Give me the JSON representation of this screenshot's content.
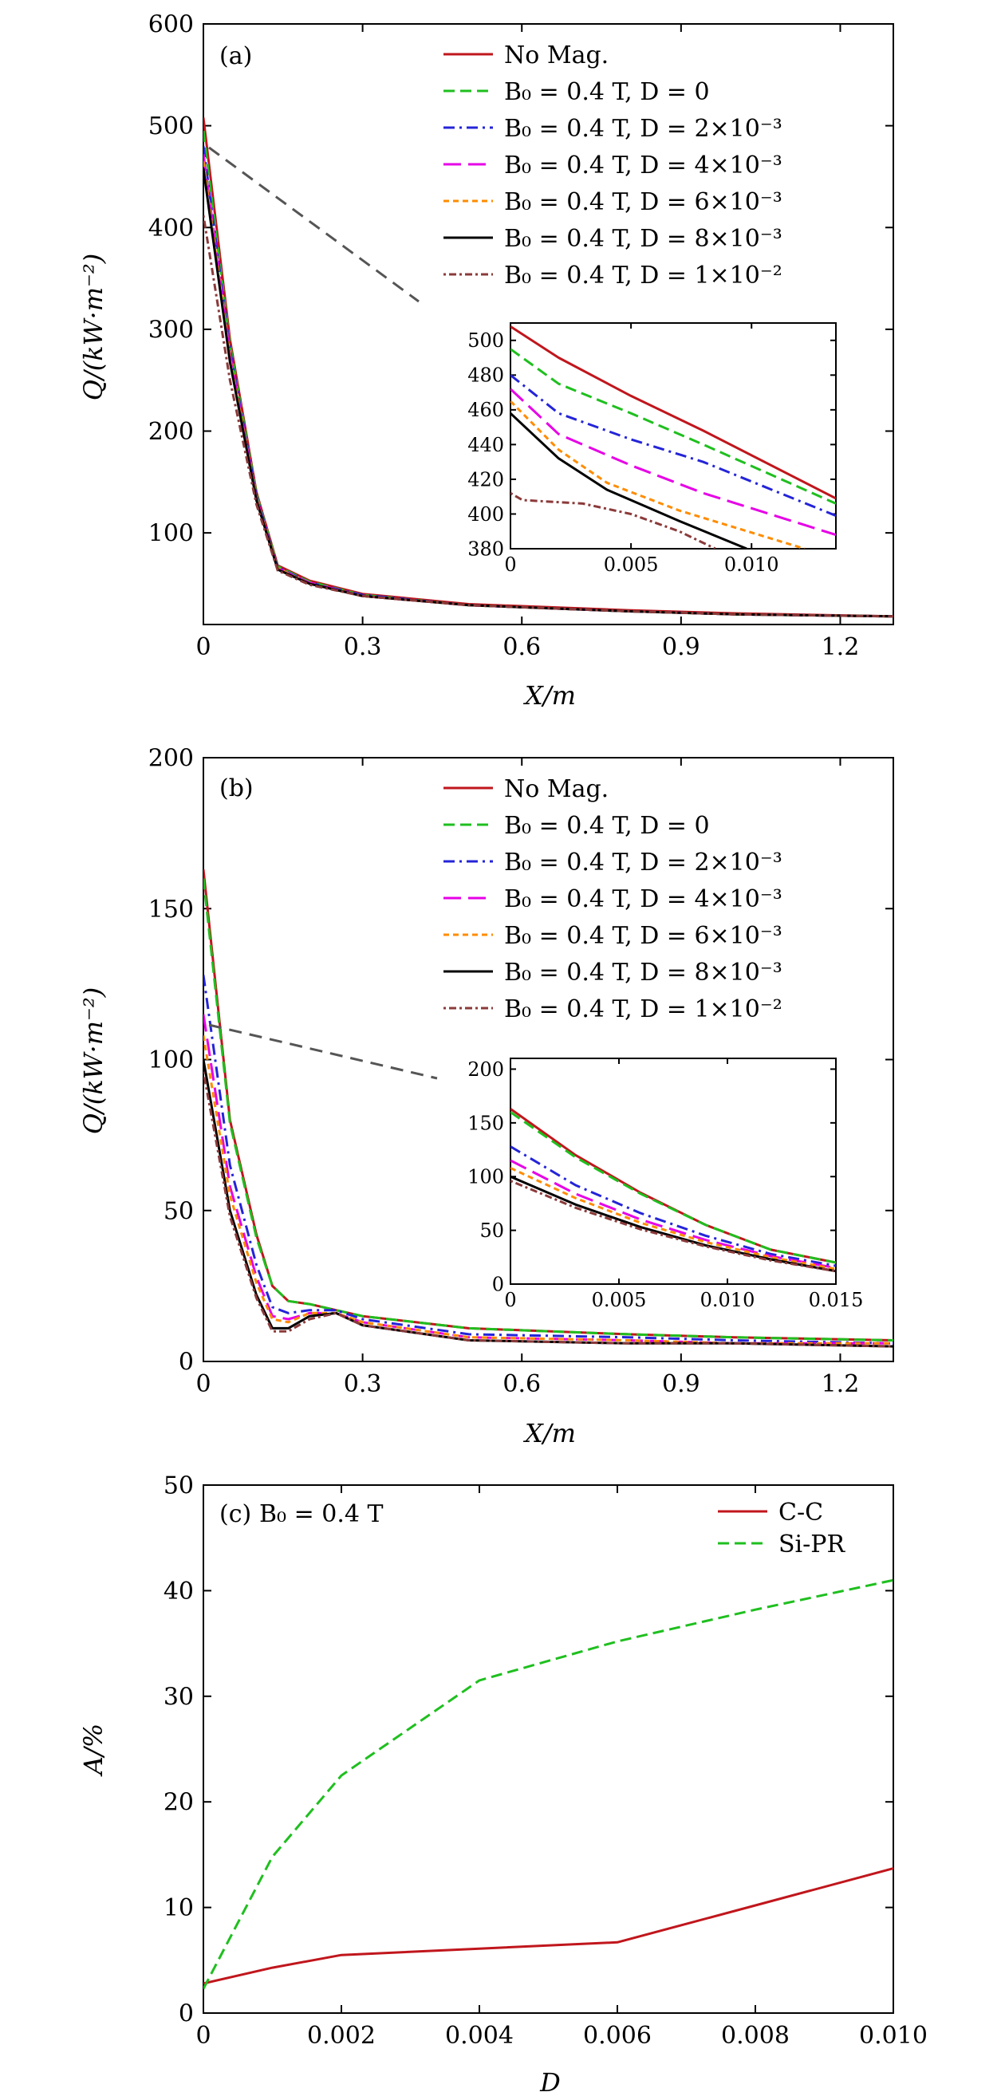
{
  "colors": {
    "nomag": "#c0161c",
    "d0": "#1fbf1f",
    "d2": "#2424d8",
    "d4": "#e600e6",
    "d6": "#ff8c00",
    "d8": "#000000",
    "d10": "#8b3a3a",
    "cc": "#c0161c",
    "sipr": "#1fbf1f",
    "connector": "#555555"
  },
  "chart_data": [
    {
      "panel": "a",
      "type": "line",
      "panel_label": "(a)",
      "xlabel": "X/m",
      "ylabel": "Q/(kW·m⁻²)",
      "xlim": [
        0,
        1.3
      ],
      "ylim": [
        10,
        600
      ],
      "xticks": [
        "0",
        "0.3",
        "0.6",
        "0.9",
        "1.2"
      ],
      "yticks": [
        "100",
        "200",
        "300",
        "400",
        "500",
        "600"
      ],
      "legend": [
        "No Mag.",
        "B₀ = 0.4 T, D = 0",
        "B₀ = 0.4 T, D = 2×10⁻³",
        "B₀ = 0.4 T, D = 4×10⁻³",
        "B₀ = 0.4 T, D = 6×10⁻³",
        "B₀ = 0.4 T, D = 8×10⁻³",
        "B₀ = 0.4 T, D = 1×10⁻²"
      ],
      "series": [
        {
          "name": "No Mag.",
          "color_key": "nomag",
          "dash": "solid",
          "x": [
            0,
            0.05,
            0.1,
            0.14,
            0.2,
            0.3,
            0.5,
            0.8,
            1.0,
            1.3
          ],
          "y": [
            508,
            290,
            140,
            68,
            53,
            40,
            30,
            24,
            21,
            18
          ]
        },
        {
          "name": "B₀ = 0.4 T, D = 0",
          "color_key": "d0",
          "dash": "dash",
          "x": [
            0,
            0.05,
            0.1,
            0.14,
            0.2,
            0.3,
            0.5,
            0.8,
            1.0,
            1.3
          ],
          "y": [
            495,
            285,
            138,
            67,
            52,
            39,
            29,
            23,
            20,
            18
          ]
        },
        {
          "name": "B₀ = 0.4 T, D = 2×10⁻³",
          "color_key": "d2",
          "dash": "dashdot",
          "x": [
            0,
            0.05,
            0.1,
            0.14,
            0.2,
            0.3,
            0.5,
            0.8,
            1.0,
            1.3
          ],
          "y": [
            480,
            280,
            136,
            66,
            51,
            39,
            29,
            23,
            20,
            18
          ]
        },
        {
          "name": "B₀ = 0.4 T, D = 4×10⁻³",
          "color_key": "d4",
          "dash": "longdash",
          "x": [
            0,
            0.05,
            0.1,
            0.14,
            0.2,
            0.3,
            0.5,
            0.8,
            1.0,
            1.3
          ],
          "y": [
            472,
            276,
            134,
            65,
            51,
            38,
            29,
            23,
            20,
            18
          ]
        },
        {
          "name": "B₀ = 0.4 T, D = 6×10⁻³",
          "color_key": "d6",
          "dash": "shortdash",
          "x": [
            0,
            0.05,
            0.1,
            0.14,
            0.2,
            0.3,
            0.5,
            0.8,
            1.0,
            1.3
          ],
          "y": [
            465,
            272,
            133,
            65,
            50,
            38,
            29,
            23,
            20,
            18
          ]
        },
        {
          "name": "B₀ = 0.4 T, D = 8×10⁻³",
          "color_key": "d8",
          "dash": "solid",
          "x": [
            0,
            0.05,
            0.1,
            0.14,
            0.2,
            0.3,
            0.5,
            0.8,
            1.0,
            1.3
          ],
          "y": [
            458,
            268,
            132,
            64,
            50,
            38,
            29,
            23,
            20,
            18
          ]
        },
        {
          "name": "B₀ = 0.4 T, D = 1×10⁻²",
          "color_key": "d10",
          "dash": "dotdash",
          "x": [
            0,
            0.05,
            0.1,
            0.14,
            0.2,
            0.3,
            0.5,
            0.8,
            1.0,
            1.3
          ],
          "y": [
            412,
            250,
            128,
            63,
            49,
            38,
            29,
            23,
            20,
            18
          ]
        }
      ],
      "inset": {
        "xlim": [
          0,
          0.0135
        ],
        "ylim": [
          380,
          510
        ],
        "xticks": [
          "0",
          "0.005",
          "0.010"
        ],
        "yticks": [
          "380",
          "400",
          "420",
          "440",
          "460",
          "480",
          "500"
        ],
        "series": [
          {
            "color_key": "nomag",
            "dash": "solid",
            "x": [
              0,
              0.002,
              0.005,
              0.008,
              0.0135
            ],
            "y": [
              508,
              490,
              468,
              448,
              409
            ]
          },
          {
            "color_key": "d0",
            "dash": "dash",
            "x": [
              0,
              0.002,
              0.005,
              0.008,
              0.0135
            ],
            "y": [
              495,
              475,
              458,
              440,
              406
            ]
          },
          {
            "color_key": "d2",
            "dash": "dashdot",
            "x": [
              0,
              0.002,
              0.005,
              0.008,
              0.0135
            ],
            "y": [
              480,
              458,
              443,
              430,
              399
            ]
          },
          {
            "color_key": "d4",
            "dash": "longdash",
            "x": [
              0,
              0.002,
              0.005,
              0.008,
              0.0135
            ],
            "y": [
              472,
              446,
              428,
              412,
              388
            ]
          },
          {
            "color_key": "d6",
            "dash": "shortdash",
            "x": [
              0,
              0.002,
              0.004,
              0.007,
              0.0122
            ],
            "y": [
              465,
              437,
              418,
              402,
              380
            ]
          },
          {
            "color_key": "d8",
            "dash": "solid",
            "x": [
              0,
              0.002,
              0.004,
              0.007,
              0.0098
            ],
            "y": [
              458,
              432,
              414,
              396,
              380
            ]
          },
          {
            "color_key": "d10",
            "dash": "dotdash",
            "x": [
              0,
              0.0005,
              0.003,
              0.005,
              0.007,
              0.0085
            ],
            "y": [
              412,
              408,
              406,
              400,
              390,
              380
            ]
          }
        ]
      }
    },
    {
      "panel": "b",
      "type": "line",
      "panel_label": "(b)",
      "xlabel": "X/m",
      "ylabel": "Q/(kW·m⁻²)",
      "xlim": [
        0,
        1.3
      ],
      "ylim": [
        0,
        200
      ],
      "xticks": [
        "0",
        "0.3",
        "0.6",
        "0.9",
        "1.2"
      ],
      "yticks": [
        "0",
        "50",
        "100",
        "150",
        "200"
      ],
      "legend": [
        "No Mag.",
        "B₀ = 0.4 T, D = 0",
        "B₀ = 0.4 T, D = 2×10⁻³",
        "B₀ = 0.4 T, D = 4×10⁻³",
        "B₀ = 0.4 T, D = 6×10⁻³",
        "B₀ = 0.4 T, D = 8×10⁻³",
        "B₀ = 0.4 T, D = 1×10⁻²"
      ],
      "series": [
        {
          "name": "No Mag.",
          "color_key": "nomag",
          "dash": "solid",
          "x": [
            0,
            0.05,
            0.1,
            0.13,
            0.16,
            0.2,
            0.25,
            0.3,
            0.5,
            0.8,
            1.0,
            1.3
          ],
          "y": [
            163,
            80,
            42,
            25,
            20,
            19,
            17,
            15,
            11,
            9,
            8,
            7
          ]
        },
        {
          "name": "B₀ = 0.4 T, D = 0",
          "color_key": "d0",
          "dash": "dash",
          "x": [
            0,
            0.05,
            0.1,
            0.13,
            0.16,
            0.2,
            0.25,
            0.3,
            0.5,
            0.8,
            1.0,
            1.3
          ],
          "y": [
            160,
            79,
            41,
            25,
            20,
            19,
            17,
            15,
            11,
            9,
            8,
            7
          ]
        },
        {
          "name": "B₀ = 0.4 T, D = 2×10⁻³",
          "color_key": "d2",
          "dash": "dashdot",
          "x": [
            0,
            0.05,
            0.1,
            0.13,
            0.16,
            0.2,
            0.25,
            0.3,
            0.5,
            0.8,
            1.0,
            1.3
          ],
          "y": [
            128,
            65,
            32,
            18,
            16,
            17,
            17,
            14,
            9,
            8,
            7,
            6
          ]
        },
        {
          "name": "B₀ = 0.4 T, D = 4×10⁻³",
          "color_key": "d4",
          "dash": "longdash",
          "x": [
            0,
            0.05,
            0.1,
            0.13,
            0.16,
            0.2,
            0.25,
            0.3,
            0.5,
            0.8,
            1.0,
            1.3
          ],
          "y": [
            115,
            58,
            28,
            15,
            14,
            16,
            16,
            13,
            8,
            7,
            6,
            6
          ]
        },
        {
          "name": "B₀ = 0.4 T, D = 6×10⁻³",
          "color_key": "d6",
          "dash": "shortdash",
          "x": [
            0,
            0.05,
            0.1,
            0.13,
            0.16,
            0.2,
            0.25,
            0.3,
            0.5,
            0.8,
            1.0,
            1.3
          ],
          "y": [
            108,
            55,
            26,
            14,
            13,
            16,
            16,
            13,
            8,
            7,
            6,
            6
          ]
        },
        {
          "name": "B₀ = 0.4 T, D = 8×10⁻³",
          "color_key": "d8",
          "dash": "solid",
          "x": [
            0,
            0.05,
            0.1,
            0.13,
            0.16,
            0.2,
            0.25,
            0.3,
            0.5,
            0.8,
            1.0,
            1.3
          ],
          "y": [
            100,
            50,
            22,
            11,
            11,
            15,
            16,
            12,
            7,
            6,
            6,
            5
          ]
        },
        {
          "name": "B₀ = 0.4 T, D = 1×10⁻²",
          "color_key": "d10",
          "dash": "dotdash",
          "x": [
            0,
            0.05,
            0.1,
            0.13,
            0.16,
            0.2,
            0.25,
            0.3,
            0.5,
            0.8,
            1.0,
            1.3
          ],
          "y": [
            96,
            48,
            21,
            10,
            10,
            14,
            16,
            12,
            7,
            6,
            6,
            5
          ]
        }
      ],
      "inset": {
        "xlim": [
          0,
          0.015
        ],
        "ylim": [
          0,
          210
        ],
        "xticks": [
          "0",
          "0.005",
          "0.010",
          "0.015"
        ],
        "yticks": [
          "0",
          "50",
          "100",
          "150",
          "200"
        ],
        "series": [
          {
            "color_key": "nomag",
            "dash": "solid",
            "x": [
              0,
              0.003,
              0.006,
              0.009,
              0.012,
              0.015
            ],
            "y": [
              163,
              120,
              85,
              55,
              32,
              20
            ]
          },
          {
            "color_key": "d0",
            "dash": "dash",
            "x": [
              0,
              0.003,
              0.006,
              0.009,
              0.012,
              0.015
            ],
            "y": [
              160,
              118,
              84,
              55,
              32,
              20
            ]
          },
          {
            "color_key": "d2",
            "dash": "dashdot",
            "x": [
              0,
              0.003,
              0.006,
              0.009,
              0.012,
              0.015
            ],
            "y": [
              128,
              92,
              66,
              45,
              28,
              17
            ]
          },
          {
            "color_key": "d4",
            "dash": "longdash",
            "x": [
              0,
              0.003,
              0.006,
              0.009,
              0.012,
              0.015
            ],
            "y": [
              115,
              84,
              60,
              41,
              26,
              15
            ]
          },
          {
            "color_key": "d6",
            "dash": "shortdash",
            "x": [
              0,
              0.003,
              0.006,
              0.009,
              0.012,
              0.015
            ],
            "y": [
              108,
              80,
              57,
              39,
              25,
              14
            ]
          },
          {
            "color_key": "d8",
            "dash": "solid",
            "x": [
              0,
              0.003,
              0.006,
              0.009,
              0.012,
              0.015
            ],
            "y": [
              100,
              74,
              53,
              36,
              23,
              12
            ]
          },
          {
            "color_key": "d10",
            "dash": "dotdash",
            "x": [
              0,
              0.003,
              0.006,
              0.009,
              0.012,
              0.015
            ],
            "y": [
              96,
              71,
              51,
              35,
              22,
              12
            ]
          }
        ]
      }
    },
    {
      "panel": "c",
      "type": "line",
      "panel_label": "(c)",
      "annotation": "B₀ = 0.4 T",
      "xlabel": "D",
      "ylabel": "A/%",
      "xlim": [
        0,
        0.01
      ],
      "ylim": [
        0,
        50
      ],
      "xticks": [
        "0",
        "0.002",
        "0.004",
        "0.006",
        "0.008",
        "0.010"
      ],
      "yticks": [
        "0",
        "10",
        "20",
        "30",
        "40",
        "50"
      ],
      "legend": [
        "C-C",
        "Si-PR"
      ],
      "series": [
        {
          "name": "C-C",
          "color_key": "cc",
          "dash": "solid",
          "x": [
            0,
            0.001,
            0.002,
            0.004,
            0.006,
            0.008,
            0.01
          ],
          "y": [
            2.8,
            4.3,
            5.5,
            6.1,
            6.7,
            10.2,
            13.7
          ]
        },
        {
          "name": "Si-PR",
          "color_key": "sipr",
          "dash": "dash",
          "x": [
            0,
            0.001,
            0.002,
            0.004,
            0.006,
            0.008,
            0.01
          ],
          "y": [
            2.3,
            14.8,
            22.5,
            31.5,
            35.2,
            38.2,
            41.0
          ]
        }
      ]
    }
  ]
}
